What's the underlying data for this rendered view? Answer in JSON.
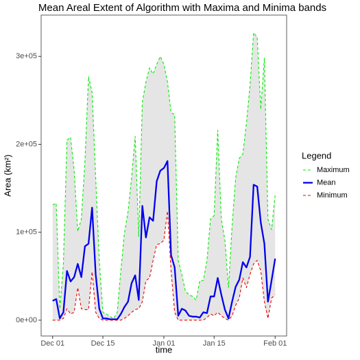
{
  "chart_data": {
    "type": "line",
    "title": "Mean Areal Extent of Algorithm with Maxima and Minima bands",
    "x_label": "time",
    "y_label": "Area (km²)",
    "legend_title": "Legend",
    "x": [
      "Dec 01",
      "Dec 02",
      "Dec 03",
      "Dec 04",
      "Dec 05",
      "Dec 06",
      "Dec 07",
      "Dec 08",
      "Dec 09",
      "Dec 10",
      "Dec 11",
      "Dec 12",
      "Dec 13",
      "Dec 14",
      "Dec 15",
      "Dec 16",
      "Dec 17",
      "Dec 18",
      "Dec 19",
      "Dec 20",
      "Dec 21",
      "Dec 22",
      "Dec 23",
      "Dec 24",
      "Dec 25",
      "Dec 26",
      "Dec 27",
      "Dec 28",
      "Dec 29",
      "Dec 30",
      "Dec 31",
      "Jan 01",
      "Jan 02",
      "Jan 03",
      "Jan 04",
      "Jan 05",
      "Jan 06",
      "Jan 07",
      "Jan 08",
      "Jan 09",
      "Jan 10",
      "Jan 11",
      "Jan 12",
      "Jan 13",
      "Jan 14",
      "Jan 15",
      "Jan 16",
      "Jan 17",
      "Jan 18",
      "Jan 19",
      "Jan 20",
      "Jan 21",
      "Jan 22",
      "Jan 23",
      "Jan 24",
      "Jan 25",
      "Jan 26",
      "Jan 27",
      "Jan 28",
      "Jan 29",
      "Jan 30",
      "Jan 31",
      "Feb 01"
    ],
    "xticks": [
      "Dec 01",
      "Dec 15",
      "Jan 01",
      "Jan 15",
      "Feb 01"
    ],
    "ylim": [
      -18000,
      347000
    ],
    "yticks": [
      {
        "value": 0,
        "label": "0e+00"
      },
      {
        "value": 100000,
        "label": "1e+05"
      },
      {
        "value": 200000,
        "label": "2e+05"
      },
      {
        "value": 300000,
        "label": "3e+05"
      }
    ],
    "grid": false,
    "band_color": "#e5e5e5",
    "legend_position": "right",
    "series": [
      {
        "name": "Maximum",
        "color": "#00ee00",
        "dash": true,
        "values": [
          131000,
          133000,
          13000,
          64000,
          205000,
          208000,
          170000,
          101000,
          115000,
          180000,
          277000,
          259000,
          162000,
          68000,
          9000,
          7000,
          4000,
          2000,
          9000,
          56000,
          99000,
          123000,
          162000,
          209000,
          95000,
          248000,
          271000,
          287000,
          280000,
          291000,
          300000,
          291000,
          271000,
          236000,
          234000,
          68000,
          52000,
          33000,
          29000,
          27000,
          23000,
          45000,
          45000,
          68000,
          115000,
          119000,
          216000,
          115000,
          91000,
          37000,
          107000,
          162000,
          184000,
          189000,
          224000,
          267000,
          327000,
          322000,
          240000,
          298000,
          115000,
          103000,
          142000
        ]
      },
      {
        "name": "Mean",
        "color": "#0000ee",
        "dash": false,
        "values": [
          22000,
          24000,
          2000,
          9000,
          56000,
          44000,
          49000,
          64000,
          49000,
          84000,
          87000,
          128000,
          52000,
          13000,
          2000,
          2000,
          1000,
          1000,
          1000,
          7000,
          15000,
          21000,
          42000,
          51000,
          23000,
          130000,
          94000,
          117000,
          113000,
          158000,
          170000,
          173000,
          181000,
          74000,
          60000,
          5000,
          13000,
          11000,
          5000,
          4000,
          4000,
          3000,
          9000,
          8000,
          27000,
          27000,
          48000,
          29000,
          12000,
          2000,
          21000,
          38000,
          46000,
          66000,
          60000,
          72000,
          154000,
          152000,
          111000,
          87000,
          21000,
          45000,
          70000
        ]
      },
      {
        "name": "Minimum",
        "color": "#ee0000",
        "dash": true,
        "values": [
          0,
          0,
          0,
          2000,
          13000,
          7000,
          9000,
          37000,
          13000,
          12000,
          12000,
          55000,
          9000,
          2000,
          0,
          0,
          0,
          0,
          0,
          0,
          2000,
          5000,
          9000,
          12000,
          13000,
          21000,
          45000,
          48000,
          68000,
          86000,
          87000,
          91000,
          124000,
          56000,
          9000,
          0,
          0,
          0,
          0,
          0,
          0,
          0,
          0,
          3000,
          7000,
          5000,
          9000,
          5000,
          2000,
          0,
          5000,
          17000,
          25000,
          48000,
          37000,
          52000,
          64000,
          68000,
          56000,
          21000,
          2000,
          25000,
          29000
        ]
      }
    ]
  }
}
